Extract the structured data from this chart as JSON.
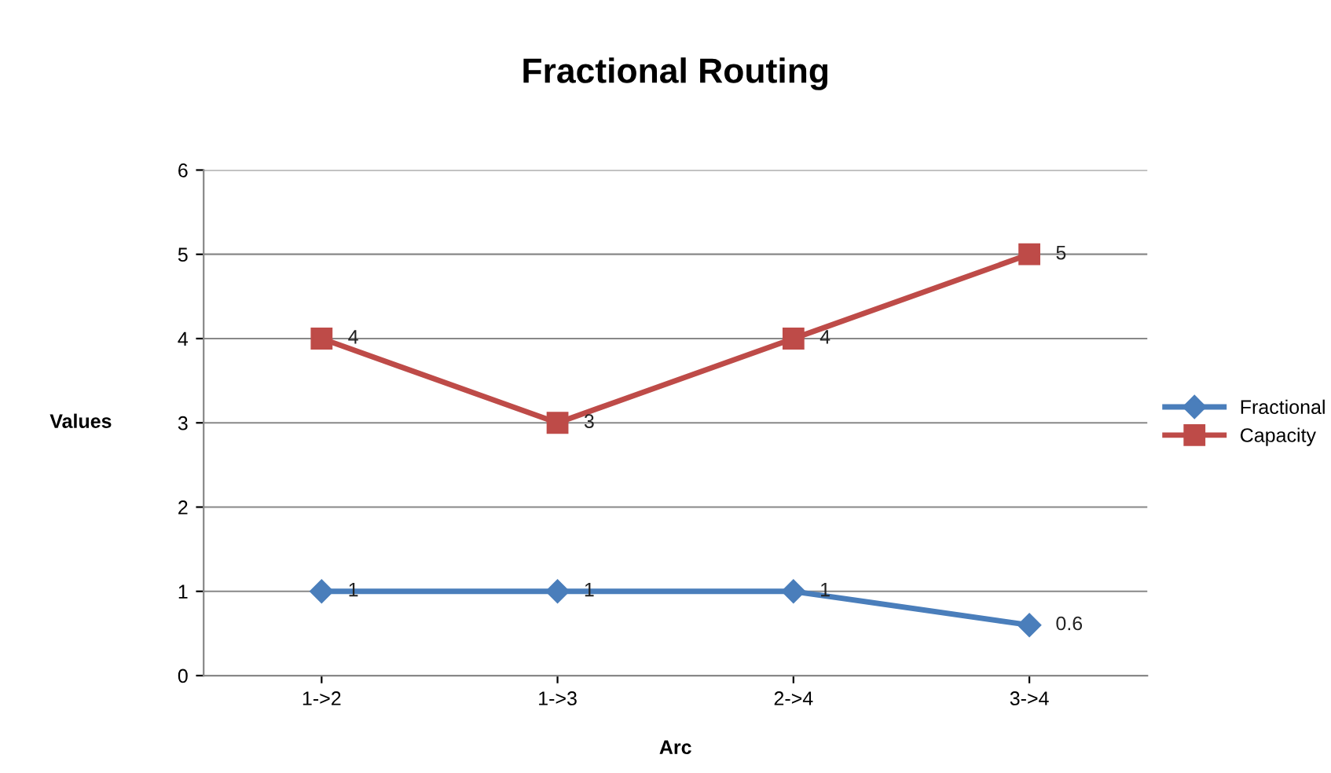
{
  "chart_data": {
    "type": "line",
    "title": "Fractional Routing",
    "xlabel": "Arc",
    "ylabel": "Values",
    "categories": [
      "1->2",
      "1->3",
      "2->4",
      "3->4"
    ],
    "series": [
      {
        "name": "Fractional",
        "color": "#4a7ebb",
        "marker": "diamond",
        "values": [
          1,
          1,
          1,
          0.6
        ]
      },
      {
        "name": "Capacity",
        "color": "#be4b48",
        "marker": "square",
        "values": [
          4,
          3,
          4,
          5
        ]
      }
    ],
    "ylim": [
      0,
      6
    ],
    "yticks": [
      0,
      1,
      2,
      3,
      4,
      5,
      6
    ],
    "grid": "y",
    "legend": "right",
    "data_labels": true,
    "line_style": "solid"
  }
}
